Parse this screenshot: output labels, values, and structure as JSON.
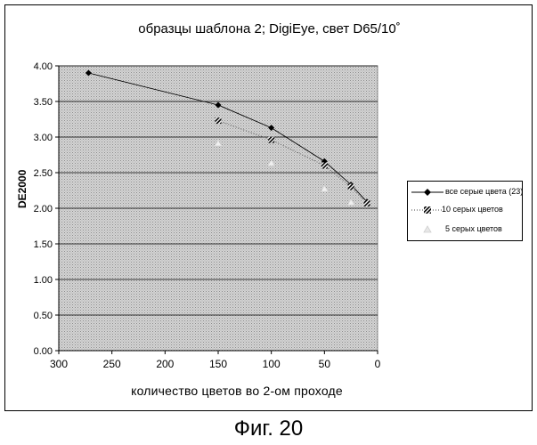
{
  "chart_data": {
    "type": "scatter",
    "title": "образцы шаблона 2; DigiEye, свет D65/10˚",
    "xlabel": "количество цветов во 2-ом проходе",
    "ylabel": "DE2000",
    "xlim": [
      300,
      0
    ],
    "x_reversed": true,
    "ylim": [
      0,
      4
    ],
    "x_ticks": [
      "300",
      "250",
      "200",
      "150",
      "100",
      "50",
      "0"
    ],
    "y_ticks": [
      "0.00",
      "0.50",
      "1.00",
      "1.50",
      "2.00",
      "2.50",
      "3.00",
      "3.50",
      "4.00"
    ],
    "grid": true,
    "legend_position": "right",
    "background": "dotted-gray",
    "series": [
      {
        "name": "все серые цвета (23)",
        "marker": "diamond",
        "color": "#000000",
        "line": "solid",
        "x": [
          272,
          150,
          100,
          50,
          25,
          10
        ],
        "y": [
          3.9,
          3.45,
          3.13,
          2.66,
          2.33,
          2.09
        ]
      },
      {
        "name": "10 серых цветов",
        "marker": "hatched-square",
        "color": "#222222",
        "line": "dotted",
        "x": [
          150,
          100,
          50,
          25,
          10
        ],
        "y": [
          3.23,
          2.96,
          2.6,
          2.3,
          2.07
        ]
      },
      {
        "name": "5 серых цветов",
        "marker": "light-triangle",
        "color": "#dddddd",
        "line": "none",
        "x": [
          150,
          100,
          50,
          25
        ],
        "y": [
          2.91,
          2.63,
          2.27,
          2.08
        ]
      }
    ]
  },
  "caption": "Фиг. 20"
}
